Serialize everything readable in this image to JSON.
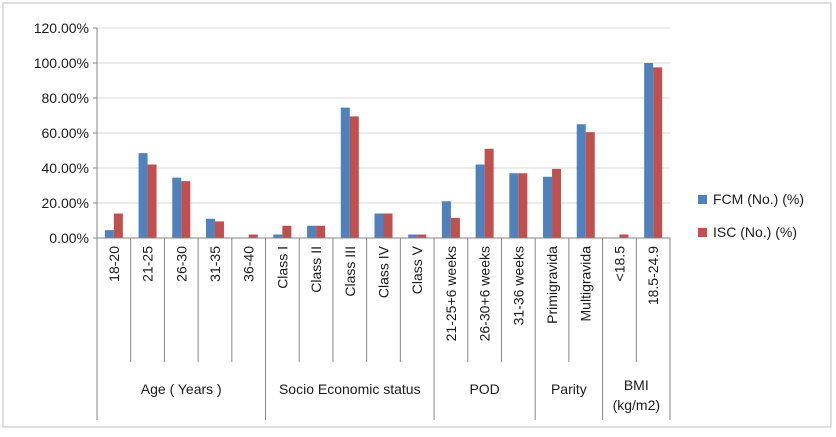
{
  "chart_data": {
    "type": "bar",
    "title": "",
    "xlabel": "",
    "ylabel": "",
    "ylim": [
      0,
      1.2
    ],
    "y_ticks": [
      "0.00%",
      "20.00%",
      "40.00%",
      "60.00%",
      "80.00%",
      "100.00%",
      "120.00%"
    ],
    "grid": true,
    "legend_position": "right",
    "categories": [
      "18-20",
      "21-25",
      "26-30",
      "31-35",
      "36-40",
      "Class I",
      "Class II",
      "Class III",
      "Class IV",
      "Class V",
      "21-25+6 weeks",
      "26-30+6 weeks",
      "31-36 weeks",
      "Primigravida",
      "Multigravida",
      "<18.5",
      "18.5-24.9"
    ],
    "groups": [
      {
        "label": "Age ( Years )",
        "count": 5
      },
      {
        "label": "Socio Economic status",
        "count": 5
      },
      {
        "label": "POD",
        "count": 3
      },
      {
        "label": "Parity",
        "count": 2
      },
      {
        "label": "BMI (kg/m2)",
        "count": 2
      }
    ],
    "series": [
      {
        "name": "FCM (No.) (%)",
        "color": "#4f81bd",
        "values": [
          0.045,
          0.485,
          0.345,
          0.11,
          0.0,
          0.02,
          0.07,
          0.745,
          0.14,
          0.02,
          0.21,
          0.42,
          0.37,
          0.35,
          0.65,
          0.0,
          1.0
        ]
      },
      {
        "name": "ISC (No.) (%)",
        "color": "#c0504d",
        "values": [
          0.14,
          0.42,
          0.325,
          0.095,
          0.02,
          0.07,
          0.07,
          0.695,
          0.14,
          0.02,
          0.115,
          0.51,
          0.37,
          0.395,
          0.605,
          0.02,
          0.975
        ]
      }
    ]
  }
}
